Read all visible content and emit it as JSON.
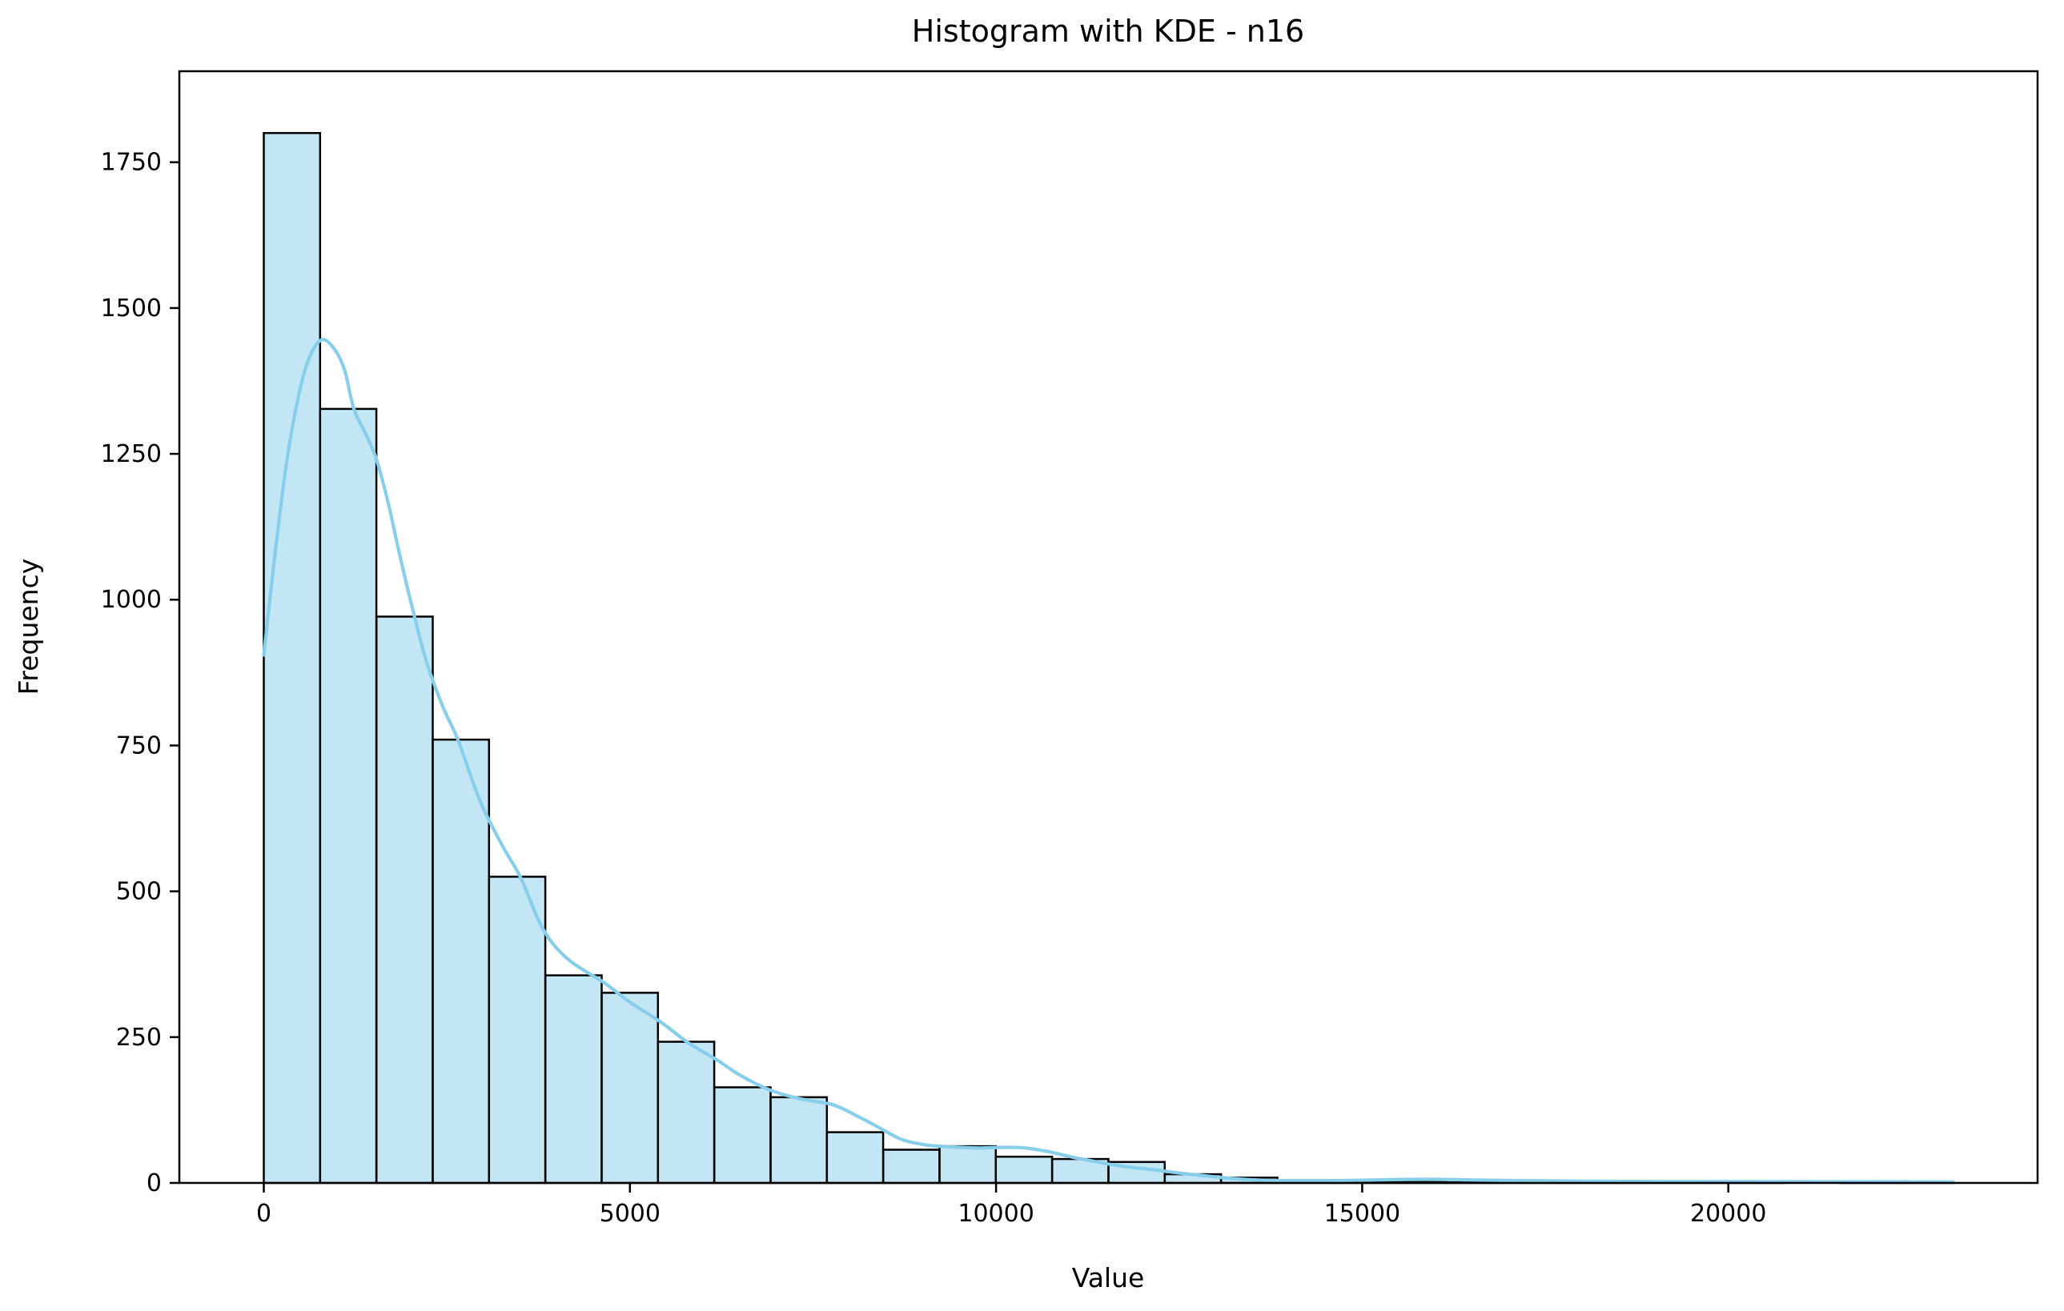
{
  "chart_data": {
    "type": "bar",
    "subtype": "histogram-with-kde",
    "title": "Histogram with KDE - n16",
    "xlabel": "Value",
    "ylabel": "Frequency",
    "grid": false,
    "legend": "none",
    "xlim": [
      -1153.5,
      24223.5
    ],
    "ylim": [
      0,
      1906
    ],
    "x_ticks": [
      0,
      5000,
      10000,
      15000,
      20000
    ],
    "y_ticks": [
      0,
      250,
      500,
      750,
      1000,
      1250,
      1500,
      1750
    ],
    "bin_start": 0,
    "bin_width": 769,
    "bin_count": 30,
    "bar_values": [
      1800,
      1327,
      971,
      760,
      525,
      356,
      326,
      242,
      164,
      147,
      87,
      57,
      63,
      45,
      41,
      36,
      15,
      9,
      2,
      2,
      2,
      1,
      1,
      1,
      1,
      1,
      1,
      0,
      1,
      1
    ],
    "kde_curve": {
      "x": [
        0,
        150,
        300,
        450,
        600,
        780,
        950,
        1100,
        1230,
        1400,
        1540,
        1700,
        1850,
        2050,
        2230,
        2450,
        2650,
        2950,
        3250,
        3510,
        3810,
        4150,
        4650,
        5000,
        5420,
        5800,
        6200,
        6500,
        6900,
        7300,
        7770,
        8100,
        8400,
        8700,
        9000,
        9230,
        9500,
        9800,
        10100,
        10400,
        10700,
        11050,
        11300,
        11600,
        11900,
        12200,
        12500,
        12800,
        13100,
        13400,
        13700,
        14100,
        14600,
        15100,
        15600,
        16100,
        16600,
        17100,
        17600,
        18100,
        19000,
        20000,
        21000,
        22000,
        23070
      ],
      "y": [
        905,
        1075,
        1225,
        1335,
        1408,
        1445,
        1432,
        1395,
        1327,
        1282,
        1240,
        1165,
        1080,
        975,
        890,
        815,
        760,
        656,
        580,
        523,
        436,
        384,
        343,
        310,
        276,
        240,
        210,
        185,
        160,
        145,
        134,
        115,
        95,
        75,
        66,
        63,
        61,
        60,
        61,
        60,
        54,
        44,
        38,
        31,
        26,
        22,
        17,
        13,
        9,
        6,
        4.5,
        4,
        4,
        5,
        6,
        6,
        5,
        4,
        3.5,
        3,
        2.5,
        2.2,
        2,
        2,
        1.5
      ]
    },
    "colors": {
      "bar_fill": "rgba(135,206,235,0.5)",
      "bar_edge": "#000000",
      "kde_line": "#87ceeb",
      "spine": "#000000",
      "text": "#000000",
      "background": "#ffffff"
    }
  },
  "layout_note": "matplotlib-style single axes figure"
}
